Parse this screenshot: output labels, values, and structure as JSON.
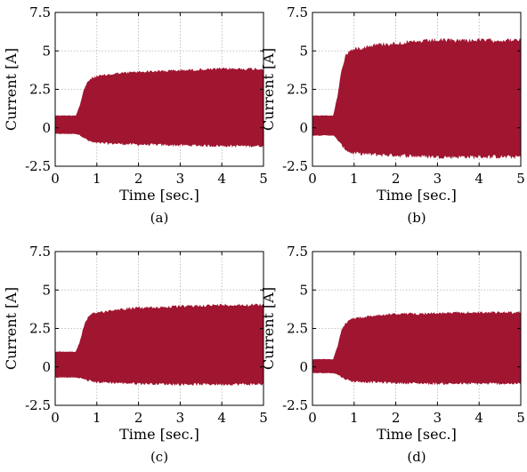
{
  "chart_data": [
    {
      "type": "area",
      "caption": "(a)",
      "xlabel": "Time [sec.]",
      "ylabel": "Current [A]",
      "xlim": [
        0,
        5
      ],
      "ylim": [
        -2.5,
        7.5
      ],
      "xticks": [
        "0",
        "1",
        "2",
        "3",
        "4",
        "5"
      ],
      "yticks": [
        "-2.5",
        "0",
        "2.5",
        "5",
        "7.5"
      ],
      "grid": true,
      "color": "#a01530",
      "series": [
        {
          "x": [
            0,
            0.5,
            0.6,
            0.7,
            0.8,
            0.9,
            1.0,
            1.5,
            2.0,
            3.0,
            4.0,
            5.0
          ],
          "upper": [
            0.8,
            0.8,
            1.5,
            2.6,
            3.1,
            3.3,
            3.4,
            3.6,
            3.7,
            3.8,
            3.9,
            3.9
          ],
          "lower": [
            -0.4,
            -0.4,
            -0.5,
            -0.7,
            -0.9,
            -1.0,
            -1.05,
            -1.1,
            -1.15,
            -1.2,
            -1.25,
            -1.25
          ]
        }
      ]
    },
    {
      "type": "area",
      "caption": "(b)",
      "xlabel": "Time [sec.]",
      "ylabel": "Current [A]",
      "xlim": [
        0,
        5
      ],
      "ylim": [
        -2.5,
        7.5
      ],
      "xticks": [
        "0",
        "1",
        "2",
        "3",
        "4",
        "5"
      ],
      "yticks": [
        "-2.5",
        "0",
        "2.5",
        "5",
        "7.5"
      ],
      "grid": true,
      "color": "#a01530",
      "series": [
        {
          "x": [
            0,
            0.5,
            0.6,
            0.7,
            0.8,
            0.9,
            1.0,
            1.5,
            2.0,
            3.0,
            4.0,
            5.0
          ],
          "upper": [
            0.8,
            0.8,
            2.0,
            3.8,
            4.8,
            5.1,
            5.2,
            5.5,
            5.6,
            5.8,
            5.8,
            5.8
          ],
          "lower": [
            -0.5,
            -0.5,
            -0.8,
            -1.2,
            -1.5,
            -1.7,
            -1.75,
            -1.85,
            -1.9,
            -2.0,
            -2.0,
            -2.0
          ]
        }
      ]
    },
    {
      "type": "area",
      "caption": "(c)",
      "xlabel": "Time [sec.]",
      "ylabel": "Current [A]",
      "xlim": [
        0,
        5
      ],
      "ylim": [
        -2.5,
        7.5
      ],
      "xticks": [
        "0",
        "1",
        "2",
        "3",
        "4",
        "5"
      ],
      "yticks": [
        "-2.5",
        "0",
        "2.5",
        "5",
        "7.5"
      ],
      "grid": true,
      "color": "#a01530",
      "series": [
        {
          "x": [
            0,
            0.5,
            0.6,
            0.7,
            0.8,
            0.9,
            1.0,
            1.5,
            2.0,
            3.0,
            4.0,
            5.0
          ],
          "upper": [
            1.0,
            1.0,
            1.7,
            2.8,
            3.3,
            3.5,
            3.6,
            3.8,
            3.9,
            4.0,
            4.1,
            4.1
          ],
          "lower": [
            -0.7,
            -0.7,
            -0.75,
            -0.85,
            -0.95,
            -1.0,
            -1.05,
            -1.1,
            -1.15,
            -1.2,
            -1.2,
            -1.2
          ]
        }
      ]
    },
    {
      "type": "area",
      "caption": "(d)",
      "xlabel": "Time [sec.]",
      "ylabel": "Current [A]",
      "xlim": [
        0,
        5
      ],
      "ylim": [
        -2.5,
        7.5
      ],
      "xticks": [
        "0",
        "1",
        "2",
        "3",
        "4",
        "5"
      ],
      "yticks": [
        "-2.5",
        "0",
        "2.5",
        "5",
        "7.5"
      ],
      "grid": true,
      "color": "#a01530",
      "series": [
        {
          "x": [
            0,
            0.5,
            0.6,
            0.7,
            0.8,
            0.9,
            1.0,
            1.5,
            2.0,
            3.0,
            4.0,
            5.0
          ],
          "upper": [
            0.5,
            0.5,
            1.3,
            2.4,
            2.9,
            3.1,
            3.2,
            3.4,
            3.5,
            3.55,
            3.6,
            3.6
          ],
          "lower": [
            -0.4,
            -0.4,
            -0.5,
            -0.7,
            -0.85,
            -0.95,
            -1.0,
            -1.05,
            -1.1,
            -1.15,
            -1.15,
            -1.15
          ]
        }
      ]
    }
  ]
}
